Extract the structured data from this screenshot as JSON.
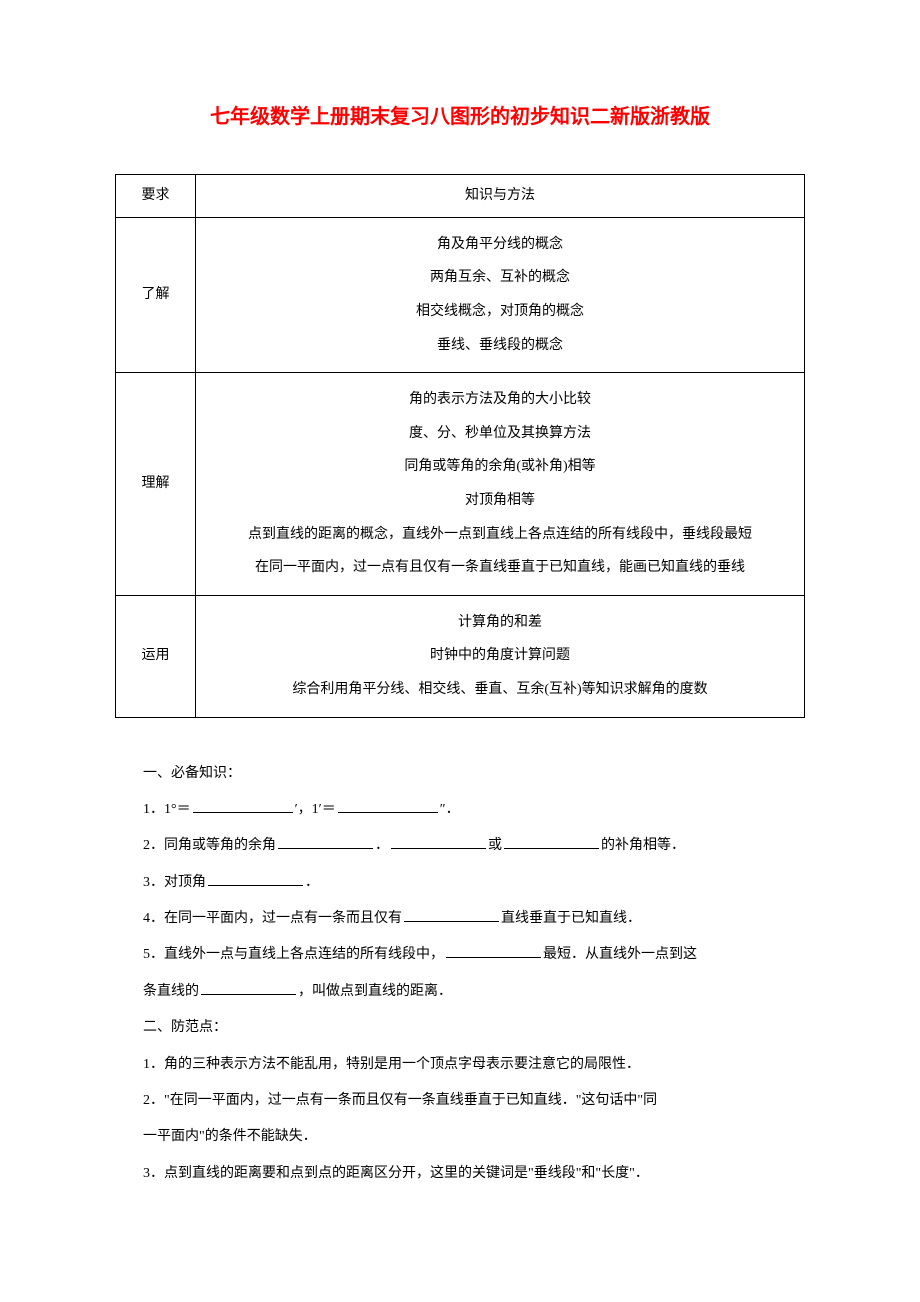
{
  "title": "七年级数学上册期末复习八图形的初步知识二新版浙教版",
  "table": {
    "header": {
      "col1": "要求",
      "col2": "知识与方法"
    },
    "rows": [
      {
        "label": "了解",
        "items": [
          "角及角平分线的概念",
          "两角互余、互补的概念",
          "相交线概念，对顶角的概念",
          "垂线、垂线段的概念"
        ]
      },
      {
        "label": "理解",
        "items": [
          "角的表示方法及角的大小比较",
          "度、分、秒单位及其换算方法",
          "同角或等角的余角(或补角)相等",
          "对顶角相等",
          "点到直线的距离的概念，直线外一点到直线上各点连结的所有线段中，垂线段最短",
          "在同一平面内，过一点有且仅有一条直线垂直于已知直线，能画已知直线的垂线"
        ]
      },
      {
        "label": "运用",
        "items": [
          "计算角的和差",
          "时钟中的角度计算问题",
          "综合利用角平分线、相交线、垂直、互余(互补)等知识求解角的度数"
        ]
      }
    ]
  },
  "sections": {
    "s1_title": "一、必备知识：",
    "q1_a": "1．1°＝",
    "q1_b": "′，1′＝",
    "q1_c": "″．",
    "q2_a": "2．同角或等角的余角",
    "q2_b": "．",
    "q2_c": "或",
    "q2_d": "的补角相等．",
    "q3_a": "3．对顶角",
    "q3_b": "．",
    "q4_a": "4．在同一平面内，过一点有一条而且仅有",
    "q4_b": "直线垂直于已知直线．",
    "q5_a": "5．直线外一点与直线上各点连结的所有线段中，",
    "q5_b": "最短．从直线外一点到这",
    "q5_c": "条直线的",
    "q5_d": "，叫做点到直线的距离．",
    "s2_title": "二、防范点：",
    "p1": "1．角的三种表示方法不能乱用，特别是用一个顶点字母表示要注意它的局限性．",
    "p2": "2．\"在同一平面内，过一点有一条而且仅有一条直线垂直于已知直线．\"这句话中\"同",
    "p2b": "一平面内\"的条件不能缺失．",
    "p3": "3．点到直线的距离要和点到点的距离区分开，这里的关键词是\"垂线段\"和\"长度\"．"
  }
}
